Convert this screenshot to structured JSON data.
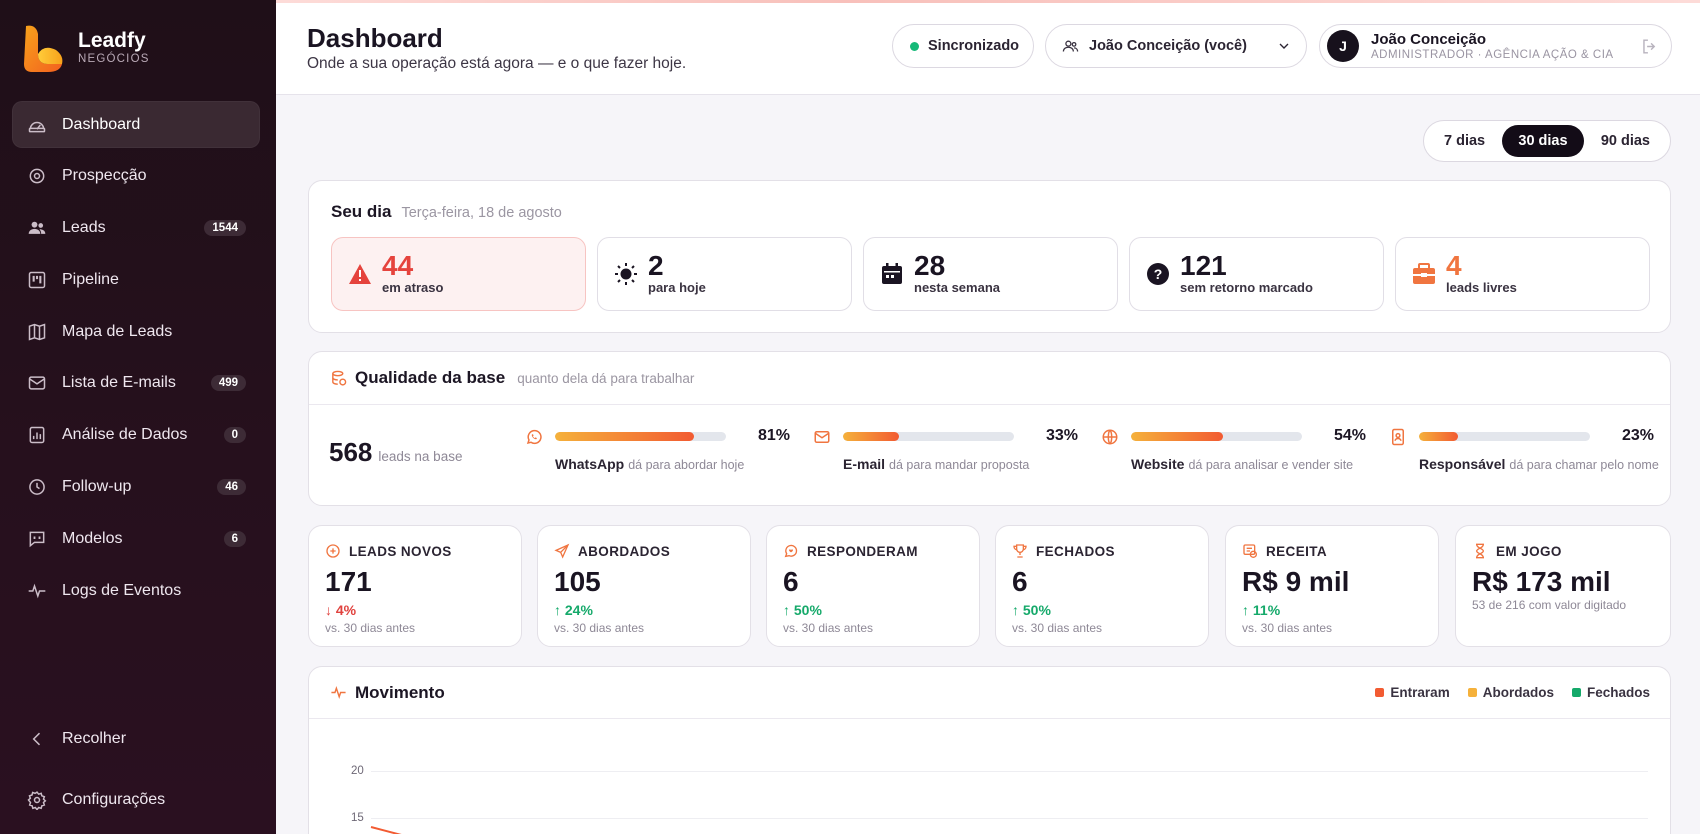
{
  "brand": {
    "name": "Leadfy",
    "sub": "NEGÓCIOS"
  },
  "sidebar": {
    "items": [
      {
        "label": "Dashboard",
        "badge": "",
        "icon": "gauge-icon",
        "active": true
      },
      {
        "label": "Prospecção",
        "badge": "",
        "icon": "target-icon"
      },
      {
        "label": "Leads",
        "badge": "1544",
        "icon": "users-icon"
      },
      {
        "label": "Pipeline",
        "badge": "",
        "icon": "kanban-icon"
      },
      {
        "label": "Mapa de Leads",
        "badge": "",
        "icon": "map-icon"
      },
      {
        "label": "Lista de E-mails",
        "badge": "499",
        "icon": "mail-icon"
      },
      {
        "label": "Análise de Dados",
        "badge": "0",
        "icon": "chart-icon"
      },
      {
        "label": "Follow-up",
        "badge": "46",
        "icon": "clock-icon"
      },
      {
        "label": "Modelos",
        "badge": "6",
        "icon": "template-icon"
      },
      {
        "label": "Logs de Eventos",
        "badge": "",
        "icon": "activity-icon"
      }
    ],
    "collapse_label": "Recolher",
    "settings_label": "Configurações"
  },
  "header": {
    "title": "Dashboard",
    "subtitle": "Onde a sua operação está agora — e o que fazer hoje.",
    "sync_label": "Sincronizado",
    "user_select": "João Conceição (você)",
    "user": {
      "initial": "J",
      "name": "João Conceição",
      "role": "ADMINISTRADOR · AGÊNCIA AÇÃO & CIA"
    }
  },
  "range": {
    "options": [
      "7 dias",
      "30 dias",
      "90 dias"
    ],
    "selected": "30 dias"
  },
  "day": {
    "title": "Seu dia",
    "date": "Terça-feira, 18 de agosto",
    "stats": [
      {
        "value": "44",
        "label": "em atraso",
        "icon": "warning-icon",
        "color": "#e5433d"
      },
      {
        "value": "2",
        "label": "para hoje",
        "icon": "sun-icon",
        "color": "#1a1422"
      },
      {
        "value": "28",
        "label": "nesta semana",
        "icon": "calendar-icon",
        "color": "#1a1422"
      },
      {
        "value": "121",
        "label": "sem retorno marcado",
        "icon": "question-icon",
        "color": "#1a1422"
      },
      {
        "value": "4",
        "label": "leads livres",
        "icon": "inbox-icon",
        "color": "#f07540"
      }
    ]
  },
  "quality": {
    "title": "Qualidade da base",
    "subtitle": "quanto dela dá para trabalhar",
    "total": "568",
    "total_label": "leads na base",
    "metrics": [
      {
        "name": "WhatsApp",
        "desc": "dá para abordar hoje",
        "pct": "81%",
        "fraction": 0.81,
        "icon": "whatsapp-icon"
      },
      {
        "name": "E-mail",
        "desc": "dá para mandar proposta",
        "pct": "33%",
        "fraction": 0.33,
        "icon": "mail-icon"
      },
      {
        "name": "Website",
        "desc": "dá para analisar e vender site",
        "pct": "54%",
        "fraction": 0.54,
        "icon": "globe-icon"
      },
      {
        "name": "Responsável",
        "desc": "dá para chamar pelo nome",
        "pct": "23%",
        "fraction": 0.23,
        "icon": "contact-icon"
      }
    ]
  },
  "kpis": [
    {
      "label": "LEADS NOVOS",
      "value": "171",
      "delta": "4%",
      "dir": "down",
      "note": "vs. 30 dias antes",
      "icon": "plus-circle-icon"
    },
    {
      "label": "ABORDADOS",
      "value": "105",
      "delta": "24%",
      "dir": "up",
      "note": "vs. 30 dias antes",
      "icon": "send-icon"
    },
    {
      "label": "RESPONDERAM",
      "value": "6",
      "delta": "50%",
      "dir": "up",
      "note": "vs. 30 dias antes",
      "icon": "chat-icon"
    },
    {
      "label": "FECHADOS",
      "value": "6",
      "delta": "50%",
      "dir": "up",
      "note": "vs. 30 dias antes",
      "icon": "trophy-icon"
    },
    {
      "label": "RECEITA",
      "value": "R$ 9 mil",
      "delta": "11%",
      "dir": "up",
      "note": "vs. 30 dias antes",
      "icon": "money-icon"
    },
    {
      "label": "EM JOGO",
      "value": "R$ 173 mil",
      "delta": "",
      "dir": "",
      "note": "53 de 216 com valor digitado",
      "icon": "hourglass-icon"
    }
  ],
  "movement": {
    "title": "Movimento",
    "legend": [
      {
        "name": "Entraram",
        "color": "#f25b32"
      },
      {
        "name": "Abordados",
        "color": "#f5b13b"
      },
      {
        "name": "Fechados",
        "color": "#15a96a"
      }
    ],
    "y_ticks": [
      "20",
      "15"
    ]
  }
}
